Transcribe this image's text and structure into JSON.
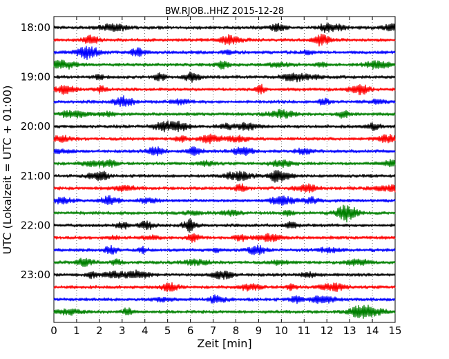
{
  "chart_data": {
    "type": "line",
    "title": "BW.RJOB..HHZ 2015-12-28",
    "xlabel": "Zeit  [min]",
    "ylabel": "UTC (Lokalzeit = UTC + 01:00)",
    "xlim": [
      0,
      15
    ],
    "x_ticks": [
      "0",
      "1",
      "2",
      "3",
      "4",
      "5",
      "6",
      "7",
      "8",
      "9",
      "10",
      "11",
      "12",
      "13",
      "14",
      "15"
    ],
    "y_tick_labels": [
      "18:00",
      "19:00",
      "20:00",
      "21:00",
      "22:00",
      "23:00"
    ],
    "trace_count": 24,
    "trace_minutes_each": 15,
    "start_time": "18:00",
    "grid": "vertical dotted at each minute",
    "colors": [
      "#000000",
      "#ff0000",
      "#0000ff",
      "#008000"
    ]
  }
}
